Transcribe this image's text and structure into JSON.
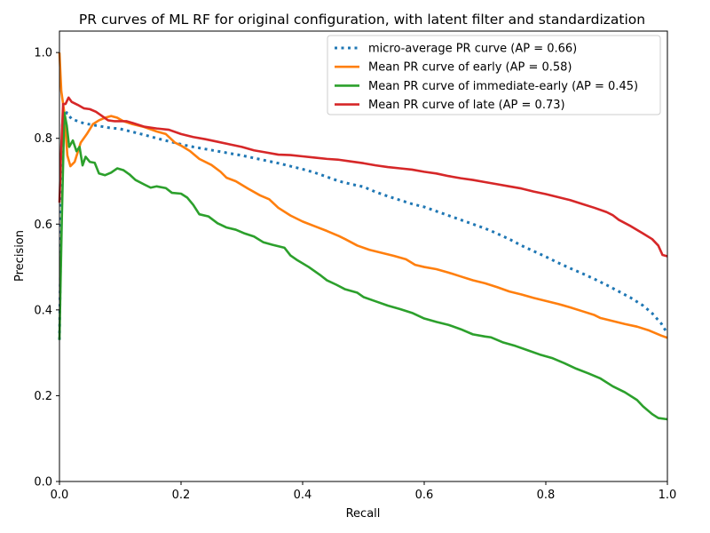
{
  "chart_data": {
    "type": "line",
    "title": "PR curves of ML RF for original configuration, with latent filter and standardization",
    "xlabel": "Recall",
    "ylabel": "Precision",
    "xlim": [
      0.0,
      1.0
    ],
    "ylim": [
      0.0,
      1.05
    ],
    "xticks": [
      0.0,
      0.2,
      0.4,
      0.6,
      0.8,
      1.0
    ],
    "xtick_labels": [
      "0.0",
      "0.2",
      "0.4",
      "0.6",
      "0.8",
      "1.0"
    ],
    "yticks": [
      0.0,
      0.2,
      0.4,
      0.6,
      0.8,
      1.0
    ],
    "ytick_labels": [
      "0.0",
      "0.2",
      "0.4",
      "0.6",
      "0.8",
      "1.0"
    ],
    "grid": false,
    "legend_position": "top-right",
    "series": [
      {
        "name": "micro-average PR curve (AP = 0.66)",
        "color": "#1f77b4",
        "style": "dotted",
        "points": [
          [
            0.0,
            0.33
          ],
          [
            0.005,
            0.84
          ],
          [
            0.012,
            0.86
          ],
          [
            0.02,
            0.845
          ],
          [
            0.04,
            0.835
          ],
          [
            0.06,
            0.83
          ],
          [
            0.08,
            0.825
          ],
          [
            0.1,
            0.822
          ],
          [
            0.12,
            0.815
          ],
          [
            0.14,
            0.808
          ],
          [
            0.16,
            0.8
          ],
          [
            0.18,
            0.793
          ],
          [
            0.2,
            0.786
          ],
          [
            0.22,
            0.78
          ],
          [
            0.24,
            0.775
          ],
          [
            0.26,
            0.77
          ],
          [
            0.28,
            0.765
          ],
          [
            0.3,
            0.76
          ],
          [
            0.32,
            0.754
          ],
          [
            0.34,
            0.748
          ],
          [
            0.36,
            0.742
          ],
          [
            0.38,
            0.735
          ],
          [
            0.4,
            0.728
          ],
          [
            0.42,
            0.72
          ],
          [
            0.44,
            0.71
          ],
          [
            0.46,
            0.7
          ],
          [
            0.48,
            0.693
          ],
          [
            0.5,
            0.687
          ],
          [
            0.52,
            0.675
          ],
          [
            0.54,
            0.665
          ],
          [
            0.56,
            0.656
          ],
          [
            0.58,
            0.647
          ],
          [
            0.6,
            0.64
          ],
          [
            0.62,
            0.63
          ],
          [
            0.64,
            0.62
          ],
          [
            0.66,
            0.61
          ],
          [
            0.68,
            0.6
          ],
          [
            0.7,
            0.59
          ],
          [
            0.72,
            0.578
          ],
          [
            0.74,
            0.565
          ],
          [
            0.76,
            0.55
          ],
          [
            0.78,
            0.537
          ],
          [
            0.8,
            0.524
          ],
          [
            0.82,
            0.51
          ],
          [
            0.84,
            0.497
          ],
          [
            0.86,
            0.485
          ],
          [
            0.88,
            0.472
          ],
          [
            0.9,
            0.458
          ],
          [
            0.92,
            0.443
          ],
          [
            0.94,
            0.428
          ],
          [
            0.96,
            0.41
          ],
          [
            0.975,
            0.392
          ],
          [
            0.99,
            0.368
          ],
          [
            1.0,
            0.345
          ]
        ]
      },
      {
        "name": "Mean PR curve of early (AP = 0.58)",
        "color": "#ff7f0e",
        "style": "solid",
        "points": [
          [
            0.0,
            1.0
          ],
          [
            0.003,
            0.91
          ],
          [
            0.008,
            0.86
          ],
          [
            0.013,
            0.76
          ],
          [
            0.018,
            0.735
          ],
          [
            0.025,
            0.745
          ],
          [
            0.035,
            0.79
          ],
          [
            0.045,
            0.81
          ],
          [
            0.055,
            0.833
          ],
          [
            0.065,
            0.842
          ],
          [
            0.075,
            0.848
          ],
          [
            0.085,
            0.852
          ],
          [
            0.095,
            0.848
          ],
          [
            0.105,
            0.84
          ],
          [
            0.12,
            0.833
          ],
          [
            0.14,
            0.826
          ],
          [
            0.16,
            0.816
          ],
          [
            0.175,
            0.81
          ],
          [
            0.19,
            0.79
          ],
          [
            0.2,
            0.783
          ],
          [
            0.215,
            0.77
          ],
          [
            0.23,
            0.752
          ],
          [
            0.25,
            0.738
          ],
          [
            0.265,
            0.722
          ],
          [
            0.275,
            0.708
          ],
          [
            0.29,
            0.7
          ],
          [
            0.31,
            0.683
          ],
          [
            0.33,
            0.667
          ],
          [
            0.345,
            0.658
          ],
          [
            0.36,
            0.638
          ],
          [
            0.38,
            0.62
          ],
          [
            0.4,
            0.606
          ],
          [
            0.42,
            0.595
          ],
          [
            0.44,
            0.584
          ],
          [
            0.46,
            0.572
          ],
          [
            0.47,
            0.565
          ],
          [
            0.49,
            0.55
          ],
          [
            0.51,
            0.54
          ],
          [
            0.53,
            0.533
          ],
          [
            0.55,
            0.526
          ],
          [
            0.57,
            0.518
          ],
          [
            0.585,
            0.505
          ],
          [
            0.6,
            0.5
          ],
          [
            0.62,
            0.495
          ],
          [
            0.64,
            0.487
          ],
          [
            0.66,
            0.478
          ],
          [
            0.68,
            0.469
          ],
          [
            0.7,
            0.462
          ],
          [
            0.72,
            0.453
          ],
          [
            0.74,
            0.443
          ],
          [
            0.76,
            0.436
          ],
          [
            0.78,
            0.428
          ],
          [
            0.8,
            0.421
          ],
          [
            0.82,
            0.414
          ],
          [
            0.84,
            0.406
          ],
          [
            0.86,
            0.397
          ],
          [
            0.88,
            0.388
          ],
          [
            0.89,
            0.381
          ],
          [
            0.91,
            0.374
          ],
          [
            0.93,
            0.367
          ],
          [
            0.95,
            0.361
          ],
          [
            0.97,
            0.352
          ],
          [
            0.99,
            0.34
          ],
          [
            1.0,
            0.335
          ]
        ]
      },
      {
        "name": "Mean PR curve of immediate-early (AP = 0.45)",
        "color": "#2ca02c",
        "style": "solid",
        "points": [
          [
            0.0,
            0.33
          ],
          [
            0.004,
            0.62
          ],
          [
            0.008,
            0.86
          ],
          [
            0.012,
            0.83
          ],
          [
            0.016,
            0.78
          ],
          [
            0.022,
            0.795
          ],
          [
            0.028,
            0.77
          ],
          [
            0.033,
            0.78
          ],
          [
            0.038,
            0.737
          ],
          [
            0.043,
            0.757
          ],
          [
            0.05,
            0.745
          ],
          [
            0.058,
            0.743
          ],
          [
            0.065,
            0.718
          ],
          [
            0.075,
            0.714
          ],
          [
            0.085,
            0.72
          ],
          [
            0.095,
            0.73
          ],
          [
            0.105,
            0.726
          ],
          [
            0.115,
            0.716
          ],
          [
            0.125,
            0.703
          ],
          [
            0.14,
            0.692
          ],
          [
            0.15,
            0.685
          ],
          [
            0.16,
            0.688
          ],
          [
            0.175,
            0.684
          ],
          [
            0.185,
            0.673
          ],
          [
            0.2,
            0.671
          ],
          [
            0.21,
            0.662
          ],
          [
            0.22,
            0.645
          ],
          [
            0.23,
            0.623
          ],
          [
            0.245,
            0.618
          ],
          [
            0.26,
            0.602
          ],
          [
            0.275,
            0.592
          ],
          [
            0.29,
            0.587
          ],
          [
            0.305,
            0.578
          ],
          [
            0.32,
            0.571
          ],
          [
            0.335,
            0.558
          ],
          [
            0.35,
            0.552
          ],
          [
            0.37,
            0.545
          ],
          [
            0.38,
            0.527
          ],
          [
            0.39,
            0.517
          ],
          [
            0.41,
            0.5
          ],
          [
            0.43,
            0.48
          ],
          [
            0.44,
            0.469
          ],
          [
            0.455,
            0.459
          ],
          [
            0.47,
            0.448
          ],
          [
            0.49,
            0.44
          ],
          [
            0.5,
            0.43
          ],
          [
            0.52,
            0.42
          ],
          [
            0.54,
            0.41
          ],
          [
            0.56,
            0.402
          ],
          [
            0.58,
            0.393
          ],
          [
            0.6,
            0.38
          ],
          [
            0.62,
            0.372
          ],
          [
            0.64,
            0.365
          ],
          [
            0.66,
            0.355
          ],
          [
            0.68,
            0.343
          ],
          [
            0.7,
            0.338
          ],
          [
            0.71,
            0.336
          ],
          [
            0.73,
            0.324
          ],
          [
            0.75,
            0.316
          ],
          [
            0.77,
            0.306
          ],
          [
            0.79,
            0.296
          ],
          [
            0.81,
            0.288
          ],
          [
            0.83,
            0.276
          ],
          [
            0.85,
            0.263
          ],
          [
            0.87,
            0.252
          ],
          [
            0.89,
            0.24
          ],
          [
            0.91,
            0.222
          ],
          [
            0.93,
            0.208
          ],
          [
            0.95,
            0.19
          ],
          [
            0.96,
            0.175
          ],
          [
            0.975,
            0.157
          ],
          [
            0.985,
            0.148
          ],
          [
            1.0,
            0.145
          ]
        ]
      },
      {
        "name": "Mean PR curve of late (AP = 0.73)",
        "color": "#d62728",
        "style": "solid",
        "points": [
          [
            0.0,
            0.65
          ],
          [
            0.003,
            0.78
          ],
          [
            0.006,
            0.88
          ],
          [
            0.01,
            0.88
          ],
          [
            0.015,
            0.895
          ],
          [
            0.02,
            0.885
          ],
          [
            0.03,
            0.878
          ],
          [
            0.04,
            0.87
          ],
          [
            0.05,
            0.868
          ],
          [
            0.06,
            0.862
          ],
          [
            0.07,
            0.852
          ],
          [
            0.08,
            0.842
          ],
          [
            0.09,
            0.84
          ],
          [
            0.11,
            0.84
          ],
          [
            0.12,
            0.836
          ],
          [
            0.14,
            0.827
          ],
          [
            0.16,
            0.823
          ],
          [
            0.18,
            0.82
          ],
          [
            0.2,
            0.81
          ],
          [
            0.22,
            0.803
          ],
          [
            0.24,
            0.798
          ],
          [
            0.26,
            0.792
          ],
          [
            0.28,
            0.786
          ],
          [
            0.3,
            0.78
          ],
          [
            0.32,
            0.772
          ],
          [
            0.34,
            0.767
          ],
          [
            0.36,
            0.762
          ],
          [
            0.38,
            0.761
          ],
          [
            0.4,
            0.758
          ],
          [
            0.42,
            0.755
          ],
          [
            0.44,
            0.752
          ],
          [
            0.46,
            0.75
          ],
          [
            0.48,
            0.746
          ],
          [
            0.5,
            0.742
          ],
          [
            0.52,
            0.737
          ],
          [
            0.54,
            0.733
          ],
          [
            0.56,
            0.73
          ],
          [
            0.58,
            0.727
          ],
          [
            0.6,
            0.722
          ],
          [
            0.62,
            0.718
          ],
          [
            0.64,
            0.712
          ],
          [
            0.66,
            0.707
          ],
          [
            0.68,
            0.703
          ],
          [
            0.7,
            0.698
          ],
          [
            0.72,
            0.693
          ],
          [
            0.74,
            0.688
          ],
          [
            0.76,
            0.683
          ],
          [
            0.78,
            0.676
          ],
          [
            0.8,
            0.67
          ],
          [
            0.82,
            0.663
          ],
          [
            0.84,
            0.656
          ],
          [
            0.86,
            0.647
          ],
          [
            0.88,
            0.638
          ],
          [
            0.9,
            0.628
          ],
          [
            0.91,
            0.621
          ],
          [
            0.92,
            0.61
          ],
          [
            0.94,
            0.595
          ],
          [
            0.96,
            0.578
          ],
          [
            0.975,
            0.565
          ],
          [
            0.985,
            0.55
          ],
          [
            0.992,
            0.528
          ],
          [
            1.0,
            0.525
          ]
        ]
      }
    ]
  }
}
